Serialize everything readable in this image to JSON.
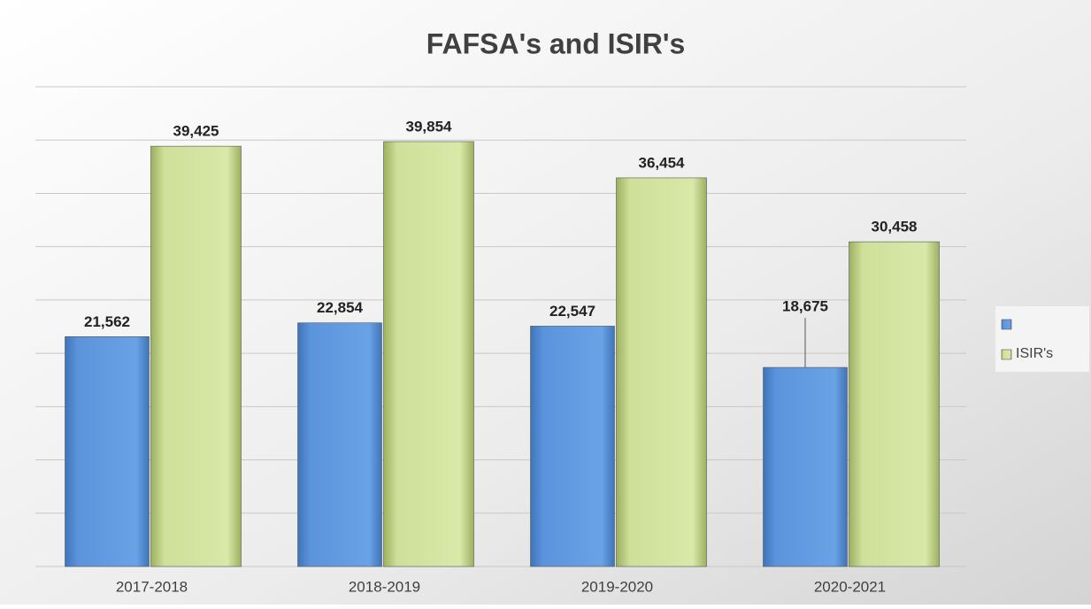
{
  "chart_data": {
    "type": "bar",
    "title": "FAFSA's and ISIR's",
    "categories": [
      "2017-2018",
      "2018-2019",
      "2019-2020",
      "2020-2021"
    ],
    "series": [
      {
        "color": "#5b94dc",
        "values": [
          21562,
          22854,
          22547,
          18675
        ],
        "value_labels": [
          "21,562",
          "22,854",
          "22,547",
          "18,675"
        ]
      },
      {
        "name": "ISIR's",
        "color": "#cfe09a",
        "values": [
          39425,
          39854,
          36454,
          30458
        ],
        "value_labels": [
          "39,425",
          "39,854",
          "36,454",
          "30,458"
        ]
      }
    ],
    "ylim": [
      0,
      45000
    ],
    "yticks": [
      0,
      5000,
      10000,
      15000,
      20000,
      25000,
      30000,
      35000,
      40000,
      45000
    ],
    "grid": true,
    "legend": "right"
  }
}
